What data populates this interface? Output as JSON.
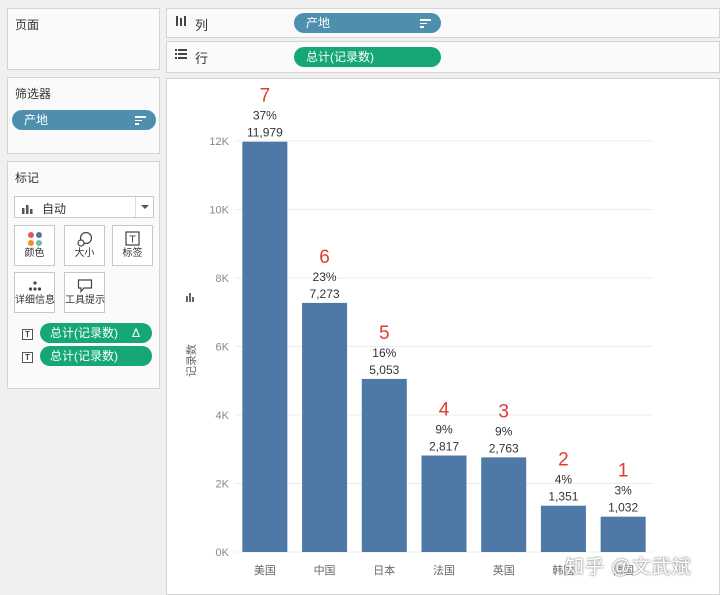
{
  "left_panel": {
    "pages_title": "页面",
    "filters_title": "筛选器",
    "filter_pill": "产地",
    "marks_title": "标记",
    "mark_type": "自动",
    "mark_buttons": [
      {
        "label": "颜色",
        "icon": "color-dots-icon"
      },
      {
        "label": "大小",
        "icon": "size-icon"
      },
      {
        "label": "标签",
        "icon": "label-T-icon"
      },
      {
        "label": "详细信息",
        "icon": "detail-dots-icon"
      },
      {
        "label": "工具提示",
        "icon": "tooltip-icon"
      }
    ],
    "mark_fields": [
      {
        "label": "总计(记录数)",
        "suffix": "Δ"
      },
      {
        "label": "总计(记录数)",
        "suffix": ""
      }
    ]
  },
  "shelves": {
    "columns_label": "列",
    "columns_pill": "产地",
    "rows_label": "行",
    "rows_pill": "总计(记录数)"
  },
  "colors": {
    "bar": "#4e79a7",
    "rank_label": "#e03c31",
    "pill_blue": "#4d8fac",
    "pill_green": "#15a778"
  },
  "chart_data": {
    "type": "bar",
    "ylabel": "记录数",
    "ylim": [
      0,
      12000
    ],
    "y_ticks": [
      "0K",
      "2K",
      "4K",
      "6K",
      "8K",
      "10K",
      "12K"
    ],
    "categories": [
      "美国",
      "中国",
      "日本",
      "法国",
      "英国",
      "韩国",
      "德国"
    ],
    "values": [
      11979,
      7273,
      5053,
      2817,
      2763,
      1351,
      1032
    ],
    "value_labels": [
      "11,979",
      "7,273",
      "5,053",
      "2,817",
      "2,763",
      "1,351",
      "1,032"
    ],
    "percent_labels": [
      "37%",
      "23%",
      "16%",
      "9%",
      "9%",
      "4%",
      "3%"
    ],
    "rank_annotations": [
      "7",
      "6",
      "5",
      "4",
      "3",
      "2",
      "1"
    ],
    "grid": true
  },
  "watermark": "知乎 @文武斌"
}
